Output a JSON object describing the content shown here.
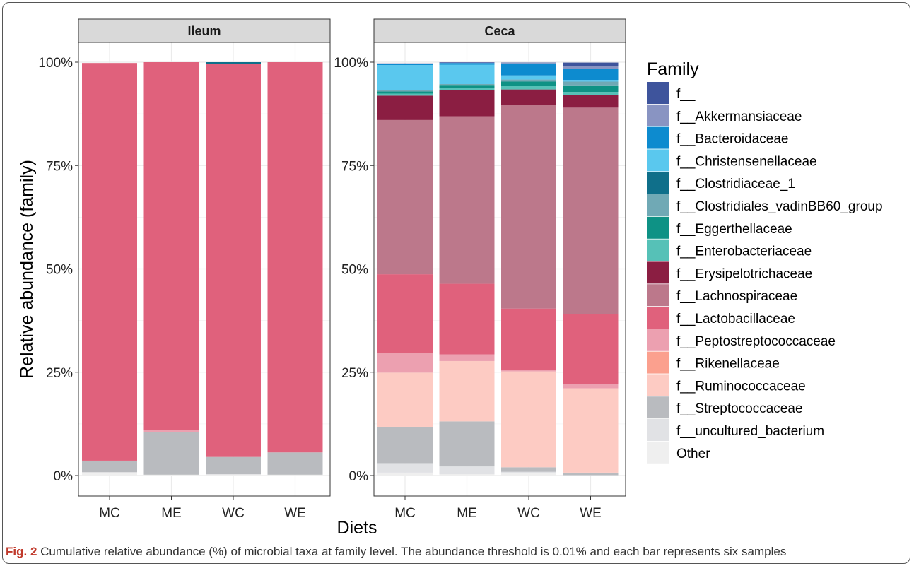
{
  "figure": {
    "caption_label": "Fig. 2",
    "caption_text": "Cumulative relative abundance (%) of microbial taxa at family level. The abundance threshold is 0.01% and each bar represents six samples"
  },
  "chart_data": {
    "type": "bar",
    "stacked": true,
    "xlabel": "Diets",
    "ylabel": "Relative abundance (family)",
    "ylim": [
      0,
      100
    ],
    "yticks": [
      "0%",
      "25%",
      "50%",
      "75%",
      "100%"
    ],
    "grid": true,
    "legend": {
      "title": "Family",
      "position": "right",
      "entries": [
        {
          "name": "f__",
          "color": "#3e549c"
        },
        {
          "name": "f__Akkermansiaceae",
          "color": "#8994c2"
        },
        {
          "name": "f__Bacteroidaceae",
          "color": "#0d8bcf"
        },
        {
          "name": "f__Christensenellaceae",
          "color": "#5ac8ee"
        },
        {
          "name": "f__Clostridiaceae_1",
          "color": "#0f6f8a"
        },
        {
          "name": "f__Clostridiales_vadinBB60_group",
          "color": "#70a9b5"
        },
        {
          "name": "f__Eggerthellaceae",
          "color": "#0e9285"
        },
        {
          "name": "f__Enterobacteriaceae",
          "color": "#56c1b7"
        },
        {
          "name": "f__Erysipelotrichaceae",
          "color": "#8b1e42"
        },
        {
          "name": "f__Lachnospiraceae",
          "color": "#bc788b"
        },
        {
          "name": "f__Lactobacillaceae",
          "color": "#e0617c"
        },
        {
          "name": "f__Peptostreptococcaceae",
          "color": "#eca0b0"
        },
        {
          "name": "f__Rikenellaceae",
          "color": "#fba08e"
        },
        {
          "name": "f__Ruminococcaceae",
          "color": "#fdcbc3"
        },
        {
          "name": "f__Streptococcaceae",
          "color": "#b9bbbf"
        },
        {
          "name": "f__uncultured_bacterium",
          "color": "#e1e2e5"
        },
        {
          "name": "Other",
          "color": "#efefef"
        }
      ]
    },
    "panels": [
      {
        "title": "Ileum",
        "categories": [
          "MC",
          "ME",
          "WC",
          "WE"
        ],
        "bars": [
          {
            "category": "MC",
            "segments": [
              {
                "family": "Other",
                "value": 0.8
              },
              {
                "family": "f__Streptococcaceae",
                "value": 2.8
              },
              {
                "family": "f__Lactobacillaceae",
                "value": 96.2
              }
            ]
          },
          {
            "category": "ME",
            "segments": [
              {
                "family": "Other",
                "value": 0.2
              },
              {
                "family": "f__Streptococcaceae",
                "value": 10.3
              },
              {
                "family": "f__Peptostreptococcaceae",
                "value": 0.5
              },
              {
                "family": "f__Lactobacillaceae",
                "value": 89.0
              }
            ]
          },
          {
            "category": "WC",
            "segments": [
              {
                "family": "Other",
                "value": 0.3
              },
              {
                "family": "f__Streptococcaceae",
                "value": 4.2
              },
              {
                "family": "f__Lactobacillaceae",
                "value": 95.1
              },
              {
                "family": "f__Clostridiaceae_1",
                "value": 0.4
              }
            ]
          },
          {
            "category": "WE",
            "segments": [
              {
                "family": "Other",
                "value": 0.2
              },
              {
                "family": "f__Streptococcaceae",
                "value": 5.4
              },
              {
                "family": "f__Lactobacillaceae",
                "value": 94.4
              }
            ]
          }
        ]
      },
      {
        "title": "Ceca",
        "categories": [
          "MC",
          "ME",
          "WC",
          "WE"
        ],
        "bars": [
          {
            "category": "MC",
            "segments": [
              {
                "family": "Other",
                "value": 0.7
              },
              {
                "family": "f__uncultured_bacterium",
                "value": 2.3
              },
              {
                "family": "f__Streptococcaceae",
                "value": 8.8
              },
              {
                "family": "f__Ruminococcaceae",
                "value": 13.1
              },
              {
                "family": "f__Peptostreptococcaceae",
                "value": 4.7
              },
              {
                "family": "f__Lactobacillaceae",
                "value": 19.1
              },
              {
                "family": "f__Lachnospiraceae",
                "value": 37.3
              },
              {
                "family": "f__Erysipelotrichaceae",
                "value": 5.9
              },
              {
                "family": "f__Enterobacteriaceae",
                "value": 0.5
              },
              {
                "family": "f__Eggerthellaceae",
                "value": 0.5
              },
              {
                "family": "f__Clostridiales_vadinBB60_group",
                "value": 0.3
              },
              {
                "family": "f__Christensenellaceae",
                "value": 6.1
              },
              {
                "family": "f__Bacteroidaceae",
                "value": 0.2
              },
              {
                "family": "f__Akkermansiaceae",
                "value": 0.1
              },
              {
                "family": "f__",
                "value": 0.1
              }
            ]
          },
          {
            "category": "ME",
            "segments": [
              {
                "family": "Other",
                "value": 0.3
              },
              {
                "family": "f__uncultured_bacterium",
                "value": 1.9
              },
              {
                "family": "f__Streptococcaceae",
                "value": 10.9
              },
              {
                "family": "f__Ruminococcaceae",
                "value": 14.6
              },
              {
                "family": "f__Peptostreptococcaceae",
                "value": 1.6
              },
              {
                "family": "f__Lactobacillaceae",
                "value": 17.1
              },
              {
                "family": "f__Lachnospiraceae",
                "value": 40.5
              },
              {
                "family": "f__Erysipelotrichaceae",
                "value": 6.3
              },
              {
                "family": "f__Enterobacteriaceae",
                "value": 0.5
              },
              {
                "family": "f__Eggerthellaceae",
                "value": 0.8
              },
              {
                "family": "f__Clostridiales_vadinBB60_group",
                "value": 0.2
              },
              {
                "family": "f__Christensenellaceae",
                "value": 4.7
              },
              {
                "family": "f__Bacteroidaceae",
                "value": 0.4
              },
              {
                "family": "f__Akkermansiaceae",
                "value": 0.1
              },
              {
                "family": "f__",
                "value": 0.1
              }
            ]
          },
          {
            "category": "WC",
            "segments": [
              {
                "family": "Other",
                "value": 0.6
              },
              {
                "family": "f__uncultured_bacterium",
                "value": 0.3
              },
              {
                "family": "f__Streptococcaceae",
                "value": 1.1
              },
              {
                "family": "f__Ruminococcaceae",
                "value": 23.2
              },
              {
                "family": "f__Peptostreptococcaceae",
                "value": 0.4
              },
              {
                "family": "f__Lactobacillaceae",
                "value": 14.8
              },
              {
                "family": "f__Lachnospiraceae",
                "value": 49.2
              },
              {
                "family": "f__Erysipelotrichaceae",
                "value": 3.8
              },
              {
                "family": "f__Enterobacteriaceae",
                "value": 0.8
              },
              {
                "family": "f__Eggerthellaceae",
                "value": 1.1
              },
              {
                "family": "f__Clostridiales_vadinBB60_group",
                "value": 0.5
              },
              {
                "family": "f__Christensenellaceae",
                "value": 1.0
              },
              {
                "family": "f__Bacteroidaceae",
                "value": 2.9
              },
              {
                "family": "f__Akkermansiaceae",
                "value": 0.1
              },
              {
                "family": "f__",
                "value": 0.1
              }
            ]
          },
          {
            "category": "WE",
            "segments": [
              {
                "family": "f__uncultured_bacterium",
                "value": 0.1
              },
              {
                "family": "f__Streptococcaceae",
                "value": 0.6
              },
              {
                "family": "f__Ruminococcaceae",
                "value": 20.4
              },
              {
                "family": "f__Peptostreptococcaceae",
                "value": 1.1
              },
              {
                "family": "f__Lactobacillaceae",
                "value": 16.8
              },
              {
                "family": "f__Lachnospiraceae",
                "value": 50.0
              },
              {
                "family": "f__Erysipelotrichaceae",
                "value": 3.1
              },
              {
                "family": "f__Enterobacteriaceae",
                "value": 0.7
              },
              {
                "family": "f__Eggerthellaceae",
                "value": 1.6
              },
              {
                "family": "f__Clostridiales_vadinBB60_group",
                "value": 0.9
              },
              {
                "family": "f__Christensenellaceae",
                "value": 0.4
              },
              {
                "family": "f__Bacteroidaceae",
                "value": 2.7
              },
              {
                "family": "f__Akkermansiaceae",
                "value": 0.6
              },
              {
                "family": "f__",
                "value": 0.9
              }
            ]
          }
        ]
      }
    ]
  }
}
